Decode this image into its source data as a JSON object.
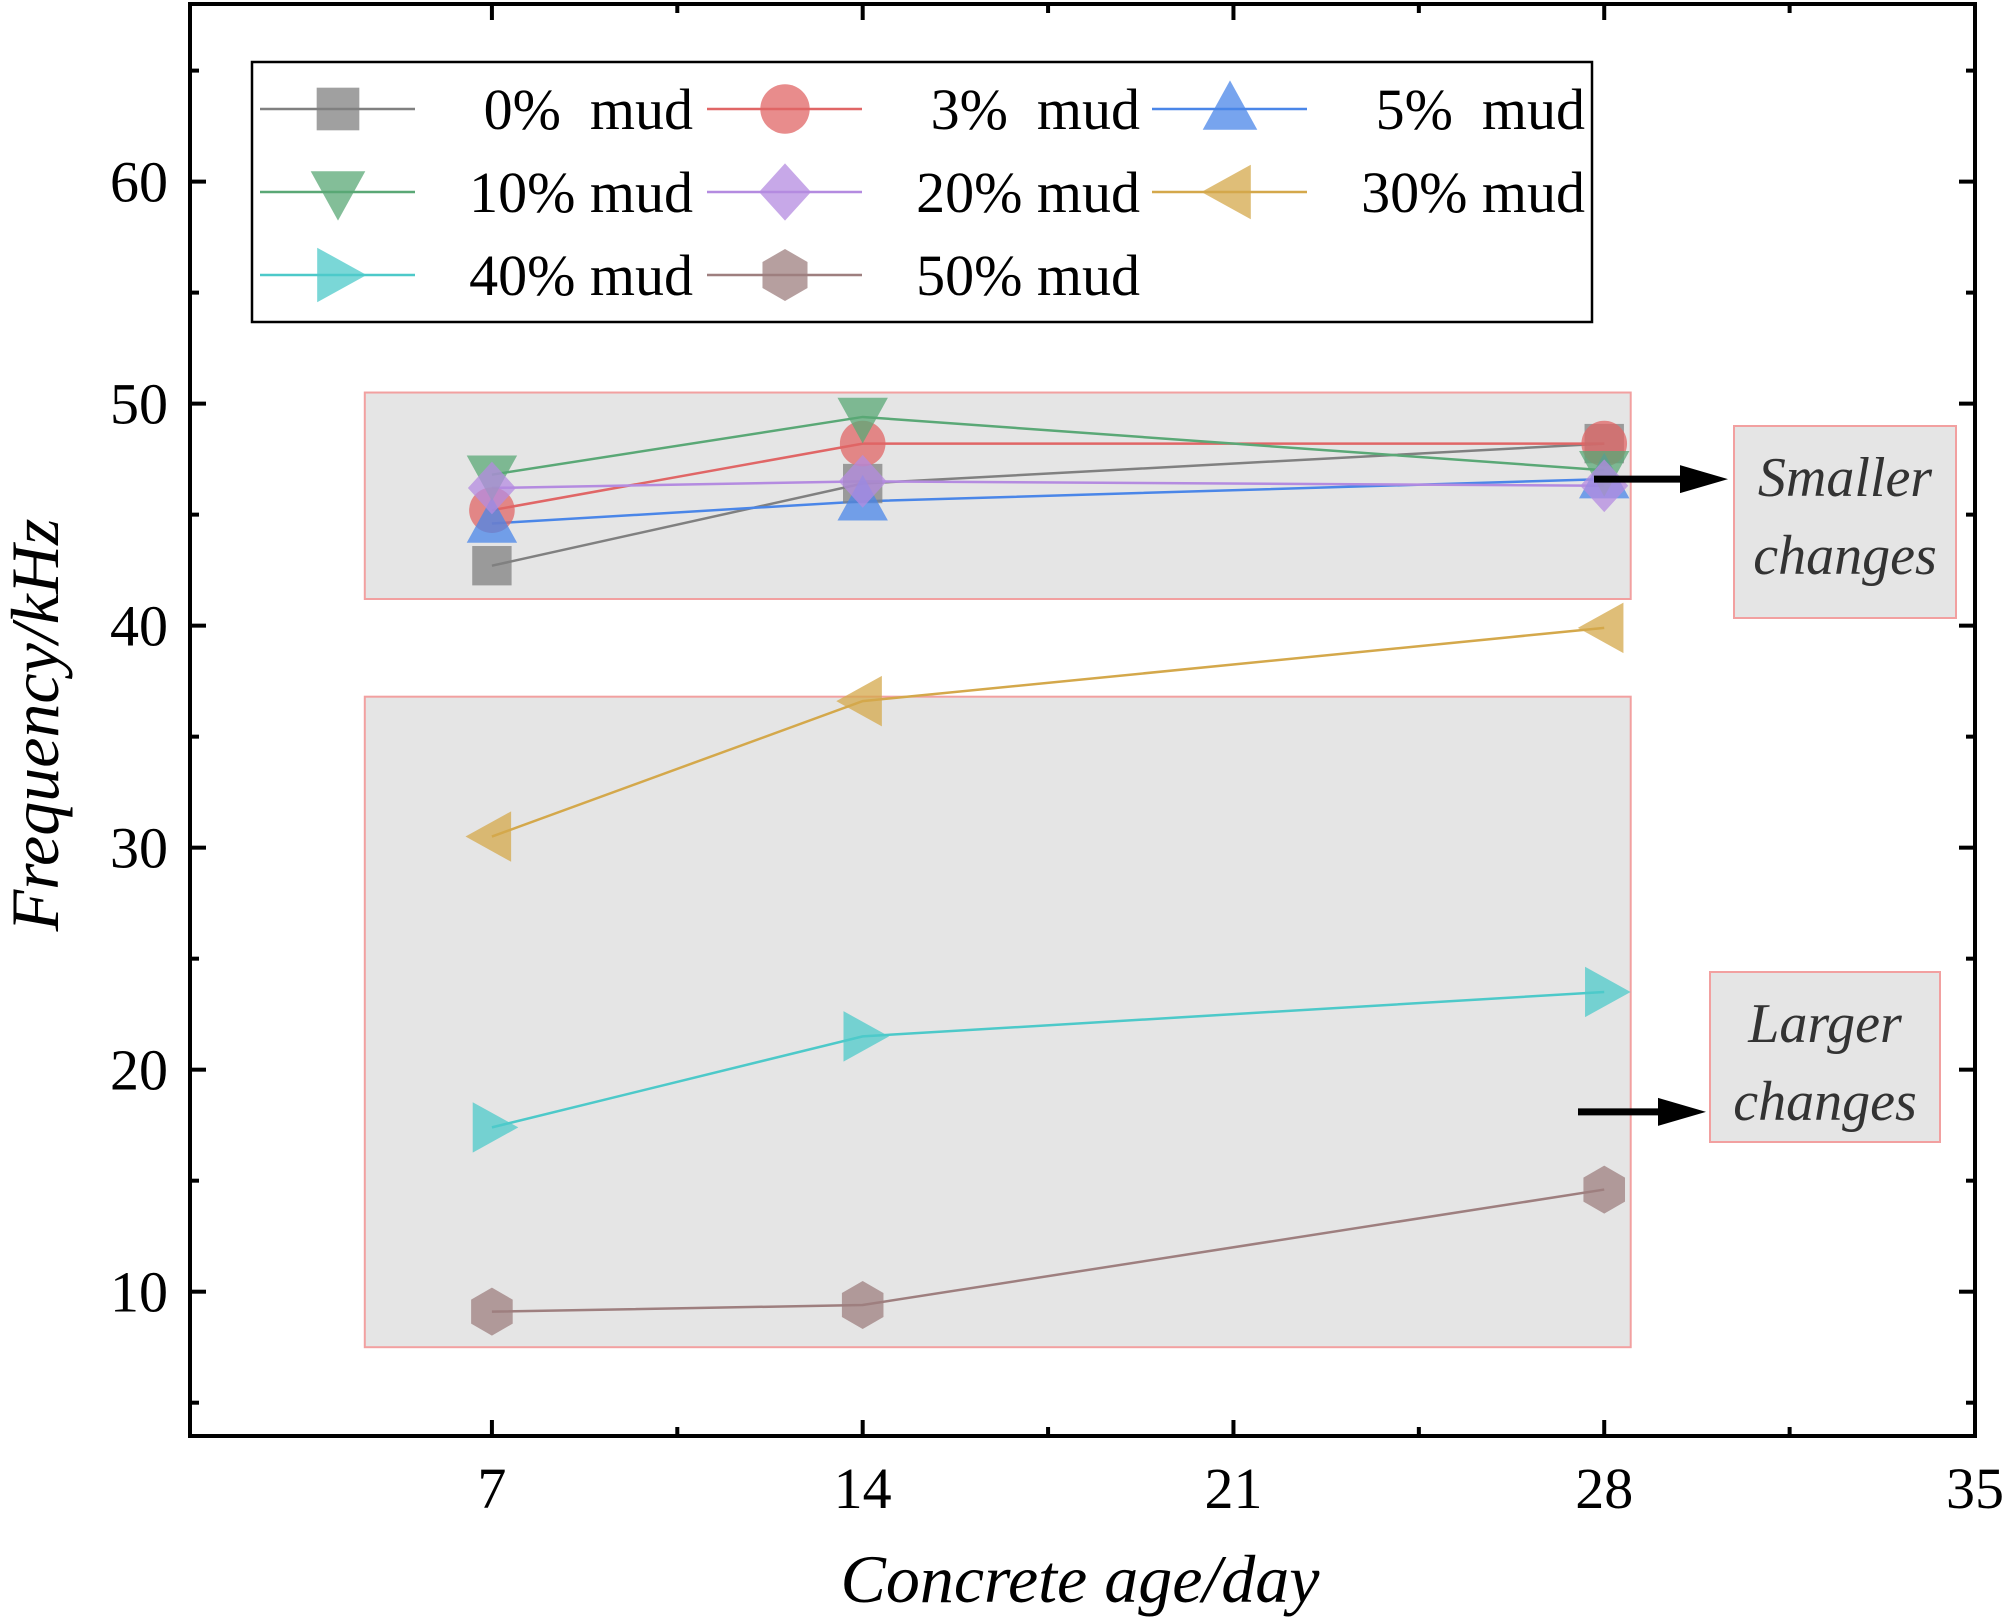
{
  "chart_data": {
    "type": "line",
    "xlabel": "Concrete age/day",
    "ylabel": "Frequency/kHz",
    "xlim": [
      1.3,
      35
    ],
    "ylim": [
      3.5,
      68
    ],
    "x_ticks": [
      7,
      14,
      21,
      28,
      35
    ],
    "y_ticks": [
      10,
      20,
      30,
      40,
      50,
      60
    ],
    "grid": false,
    "legend_position": "top-left",
    "x": [
      7,
      14,
      28
    ],
    "series": [
      {
        "name": "0%  mud",
        "values": [
          42.7,
          46.4,
          48.2
        ],
        "color": "#808080",
        "marker": "square"
      },
      {
        "name": "3%  mud",
        "values": [
          45.2,
          48.2,
          48.2
        ],
        "color": "#e06666",
        "marker": "circle"
      },
      {
        "name": "5%  mud",
        "values": [
          44.6,
          45.6,
          46.6
        ],
        "color": "#4a86e8",
        "marker": "triangle-up"
      },
      {
        "name": "10% mud",
        "values": [
          46.8,
          49.4,
          47.0
        ],
        "color": "#5aa876",
        "marker": "triangle-down"
      },
      {
        "name": "20% mud",
        "values": [
          46.2,
          46.5,
          46.3
        ],
        "color": "#b48be0",
        "marker": "diamond"
      },
      {
        "name": "30% mud",
        "values": [
          30.5,
          36.6,
          39.9
        ],
        "color": "#d4a84b",
        "marker": "triangle-left"
      },
      {
        "name": "40% mud",
        "values": [
          17.4,
          21.5,
          23.5
        ],
        "color": "#4dc9c9",
        "marker": "triangle-right"
      },
      {
        "name": "50% mud",
        "values": [
          9.1,
          9.4,
          14.6
        ],
        "color": "#9e7f7f",
        "marker": "hexagon"
      }
    ],
    "annotations": [
      {
        "lines": [
          "Smaller",
          "changes"
        ],
        "region_y": [
          41.2,
          50.5
        ]
      },
      {
        "lines": [
          "Larger",
          "changes"
        ],
        "region_y": [
          7.5,
          36.8
        ]
      }
    ]
  }
}
